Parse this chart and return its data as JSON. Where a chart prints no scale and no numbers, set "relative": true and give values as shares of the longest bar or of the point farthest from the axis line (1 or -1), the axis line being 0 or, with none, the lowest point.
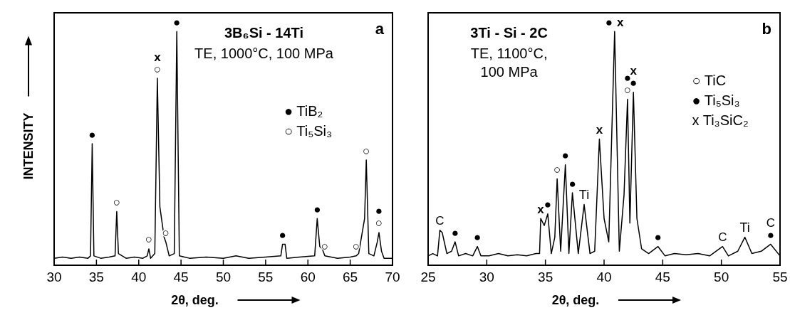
{
  "chart_data": [
    {
      "type": "line",
      "title": "3B₆Si - 14Ti",
      "subtitle": "TE, 1000°C, 100 MPa",
      "xlabel": "2θ, deg.",
      "ylabel": "INTENSITY",
      "relative": true,
      "color": "#000000",
      "xlim": [
        30,
        70
      ],
      "xticks": [
        30,
        35,
        40,
        45,
        50,
        55,
        60,
        65,
        70
      ],
      "x": [
        30,
        31,
        32,
        33,
        34,
        34.3,
        34.5,
        34.7,
        35.5,
        36.5,
        37.2,
        37.4,
        37.6,
        38.5,
        39.5,
        40.5,
        41,
        41.2,
        41.4,
        41.9,
        42.2,
        42.5,
        43,
        43.2,
        43.6,
        44.2,
        44.5,
        44.8,
        46,
        48,
        50,
        51.5,
        53,
        55,
        56.8,
        57,
        57.3,
        57.5,
        59,
        60.8,
        61.1,
        61.4,
        61.7,
        62,
        63.5,
        65,
        65.7,
        66,
        66.7,
        66.9,
        67.2,
        67.8,
        68.2,
        68.4,
        68.7,
        69,
        70
      ],
      "values": [
        0.03,
        0.035,
        0.03,
        0.035,
        0.03,
        0.04,
        0.52,
        0.04,
        0.03,
        0.035,
        0.04,
        0.23,
        0.05,
        0.03,
        0.035,
        0.03,
        0.04,
        0.07,
        0.03,
        0.05,
        0.8,
        0.25,
        0.12,
        0.1,
        0.04,
        0.05,
        1.0,
        0.04,
        0.03,
        0.035,
        0.03,
        0.04,
        0.03,
        0.035,
        0.04,
        0.09,
        0.09,
        0.03,
        0.035,
        0.04,
        0.2,
        0.08,
        0.07,
        0.04,
        0.03,
        0.035,
        0.04,
        0.05,
        0.2,
        0.45,
        0.05,
        0.04,
        0.1,
        0.14,
        0.06,
        0.03,
        0.03
      ],
      "annotations": [
        "a",
        "● TiB₂",
        "○ Ti₅Si₃",
        {
          "text": "●",
          "x": 34.5,
          "y": 0.52
        },
        {
          "text": "○",
          "x": 37.4,
          "y": 0.23
        },
        {
          "text": "○",
          "x": 41.2,
          "y": 0.07
        },
        {
          "text": "○",
          "x": 42.2,
          "y": 0.8
        },
        {
          "text": "x",
          "x": 42.2,
          "y": 0.8
        },
        {
          "text": "○",
          "x": 43.2,
          "y": 0.1
        },
        {
          "text": "●",
          "x": 44.5,
          "y": 1.0
        },
        {
          "text": "●",
          "x": 57,
          "y": 0.09
        },
        {
          "text": "●",
          "x": 61.1,
          "y": 0.2
        },
        {
          "text": "○",
          "x": 62,
          "y": 0.04
        },
        {
          "text": "○",
          "x": 65.7,
          "y": 0.04
        },
        {
          "text": "○",
          "x": 66.9,
          "y": 0.45
        },
        {
          "text": "○",
          "x": 68.4,
          "y": 0.14
        },
        {
          "text": "●",
          "x": 68.4,
          "y": 0.14
        }
      ]
    },
    {
      "type": "line",
      "title": "3Ti - Si - 2C",
      "subtitle": "TE, 1100°C, 100 MPa",
      "xlabel": "2θ, deg.",
      "relative": true,
      "color": "#000000",
      "xlim": [
        25,
        55
      ],
      "xticks": [
        25,
        30,
        35,
        40,
        45,
        50,
        55
      ],
      "x": [
        25,
        25.4,
        25.8,
        26,
        26.2,
        26.6,
        27,
        27.3,
        27.6,
        28.2,
        28.8,
        29.2,
        29.5,
        30.2,
        31,
        31.8,
        32.6,
        33.4,
        34.2,
        34.5,
        34.6,
        34.9,
        35.2,
        35.5,
        35.8,
        36,
        36.3,
        36.7,
        37,
        37.3,
        37.8,
        38.3,
        38.8,
        39.2,
        39.6,
        40,
        40.4,
        40.9,
        41.3,
        41.7,
        42,
        42.2,
        42.5,
        42.8,
        43.2,
        43.8,
        44.6,
        45.2,
        46,
        47,
        48,
        49,
        50.1,
        50.6,
        51.4,
        52,
        52.6,
        53.4,
        54.2,
        55
      ],
      "values": [
        0.04,
        0.05,
        0.04,
        0.15,
        0.14,
        0.05,
        0.06,
        0.1,
        0.04,
        0.05,
        0.04,
        0.08,
        0.04,
        0.04,
        0.05,
        0.04,
        0.045,
        0.04,
        0.05,
        0.05,
        0.2,
        0.17,
        0.22,
        0.05,
        0.12,
        0.37,
        0.06,
        0.43,
        0.05,
        0.31,
        0.05,
        0.26,
        0.05,
        0.06,
        0.54,
        0.2,
        0.1,
        1.0,
        0.06,
        0.3,
        0.71,
        0.18,
        0.74,
        0.2,
        0.07,
        0.05,
        0.08,
        0.04,
        0.05,
        0.045,
        0.05,
        0.04,
        0.08,
        0.04,
        0.06,
        0.12,
        0.05,
        0.06,
        0.09,
        0.04
      ],
      "annotations": [
        "b",
        "○ TiC",
        "● Ti₅Si₃",
        "x Ti₃SiC₂",
        {
          "text": "C",
          "x": 26,
          "y": 0.15
        },
        {
          "text": "●",
          "x": 27.3,
          "y": 0.1
        },
        {
          "text": "●",
          "x": 29.2,
          "y": 0.08
        },
        {
          "text": "x",
          "x": 34.6,
          "y": 0.2
        },
        {
          "text": "●",
          "x": 35.2,
          "y": 0.22
        },
        {
          "text": "○",
          "x": 36,
          "y": 0.37
        },
        {
          "text": "●",
          "x": 36.7,
          "y": 0.43
        },
        {
          "text": "●",
          "x": 37.3,
          "y": 0.31
        },
        {
          "text": "Ti",
          "x": 38.3,
          "y": 0.26
        },
        {
          "text": "x",
          "x": 39.6,
          "y": 0.54
        },
        {
          "text": "●",
          "x": 40.9,
          "y": 1.0
        },
        {
          "text": "x",
          "x": 40.9,
          "y": 1.0
        },
        {
          "text": "○",
          "x": 42,
          "y": 0.71
        },
        {
          "text": "●",
          "x": 42,
          "y": 0.71
        },
        {
          "text": "●",
          "x": 42.5,
          "y": 0.74
        },
        {
          "text": "x",
          "x": 42.5,
          "y": 0.74
        },
        {
          "text": "●",
          "x": 44.6,
          "y": 0.08
        },
        {
          "text": "C",
          "x": 50.1,
          "y": 0.08
        },
        {
          "text": "Ti",
          "x": 52,
          "y": 0.12
        },
        {
          "text": "●",
          "x": 54.2,
          "y": 0.09
        },
        {
          "text": "C",
          "x": 54.2,
          "y": 0.09
        }
      ]
    }
  ]
}
